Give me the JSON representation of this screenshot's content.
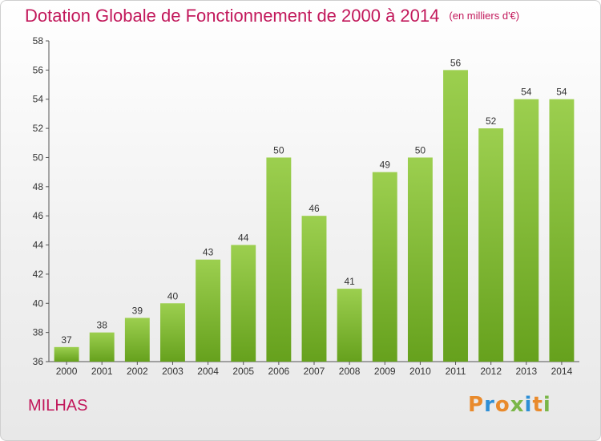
{
  "title": "Dotation Globale de Fonctionnement de 2000 à 2014",
  "unit_note": "(en milliers d'€)",
  "commune": "MILHAS",
  "logo": {
    "text": "Proxiti",
    "letters": [
      {
        "char": "P",
        "color": "#e98a2c"
      },
      {
        "char": "r",
        "color": "#2e8fd6"
      },
      {
        "char": "o",
        "color": "#e98a2c"
      },
      {
        "char": "x",
        "color": "#7ab648"
      },
      {
        "char": "i",
        "color": "#2e8fd6"
      },
      {
        "char": "t",
        "color": "#e98a2c"
      },
      {
        "char": "i",
        "color": "#7ab648"
      }
    ]
  },
  "colors": {
    "title": "#c2185b",
    "bar_light": "#9ccf4f",
    "bar_dark": "#66a11d",
    "axis": "#555555"
  },
  "chart_data": {
    "type": "bar",
    "title": "Dotation Globale de Fonctionnement de 2000 à 2014",
    "categories": [
      "2000",
      "2001",
      "2002",
      "2003",
      "2004",
      "2005",
      "2006",
      "2007",
      "2008",
      "2009",
      "2010",
      "2011",
      "2012",
      "2013",
      "2014"
    ],
    "values": [
      37,
      38,
      39,
      40,
      43,
      44,
      50,
      46,
      41,
      49,
      50,
      56,
      52,
      54,
      54
    ],
    "ylim": [
      36,
      58
    ],
    "yticks": [
      36,
      38,
      40,
      42,
      44,
      46,
      48,
      50,
      52,
      54,
      56,
      58
    ],
    "xlabel": "",
    "ylabel": "",
    "grid": false,
    "data_labels": true
  }
}
